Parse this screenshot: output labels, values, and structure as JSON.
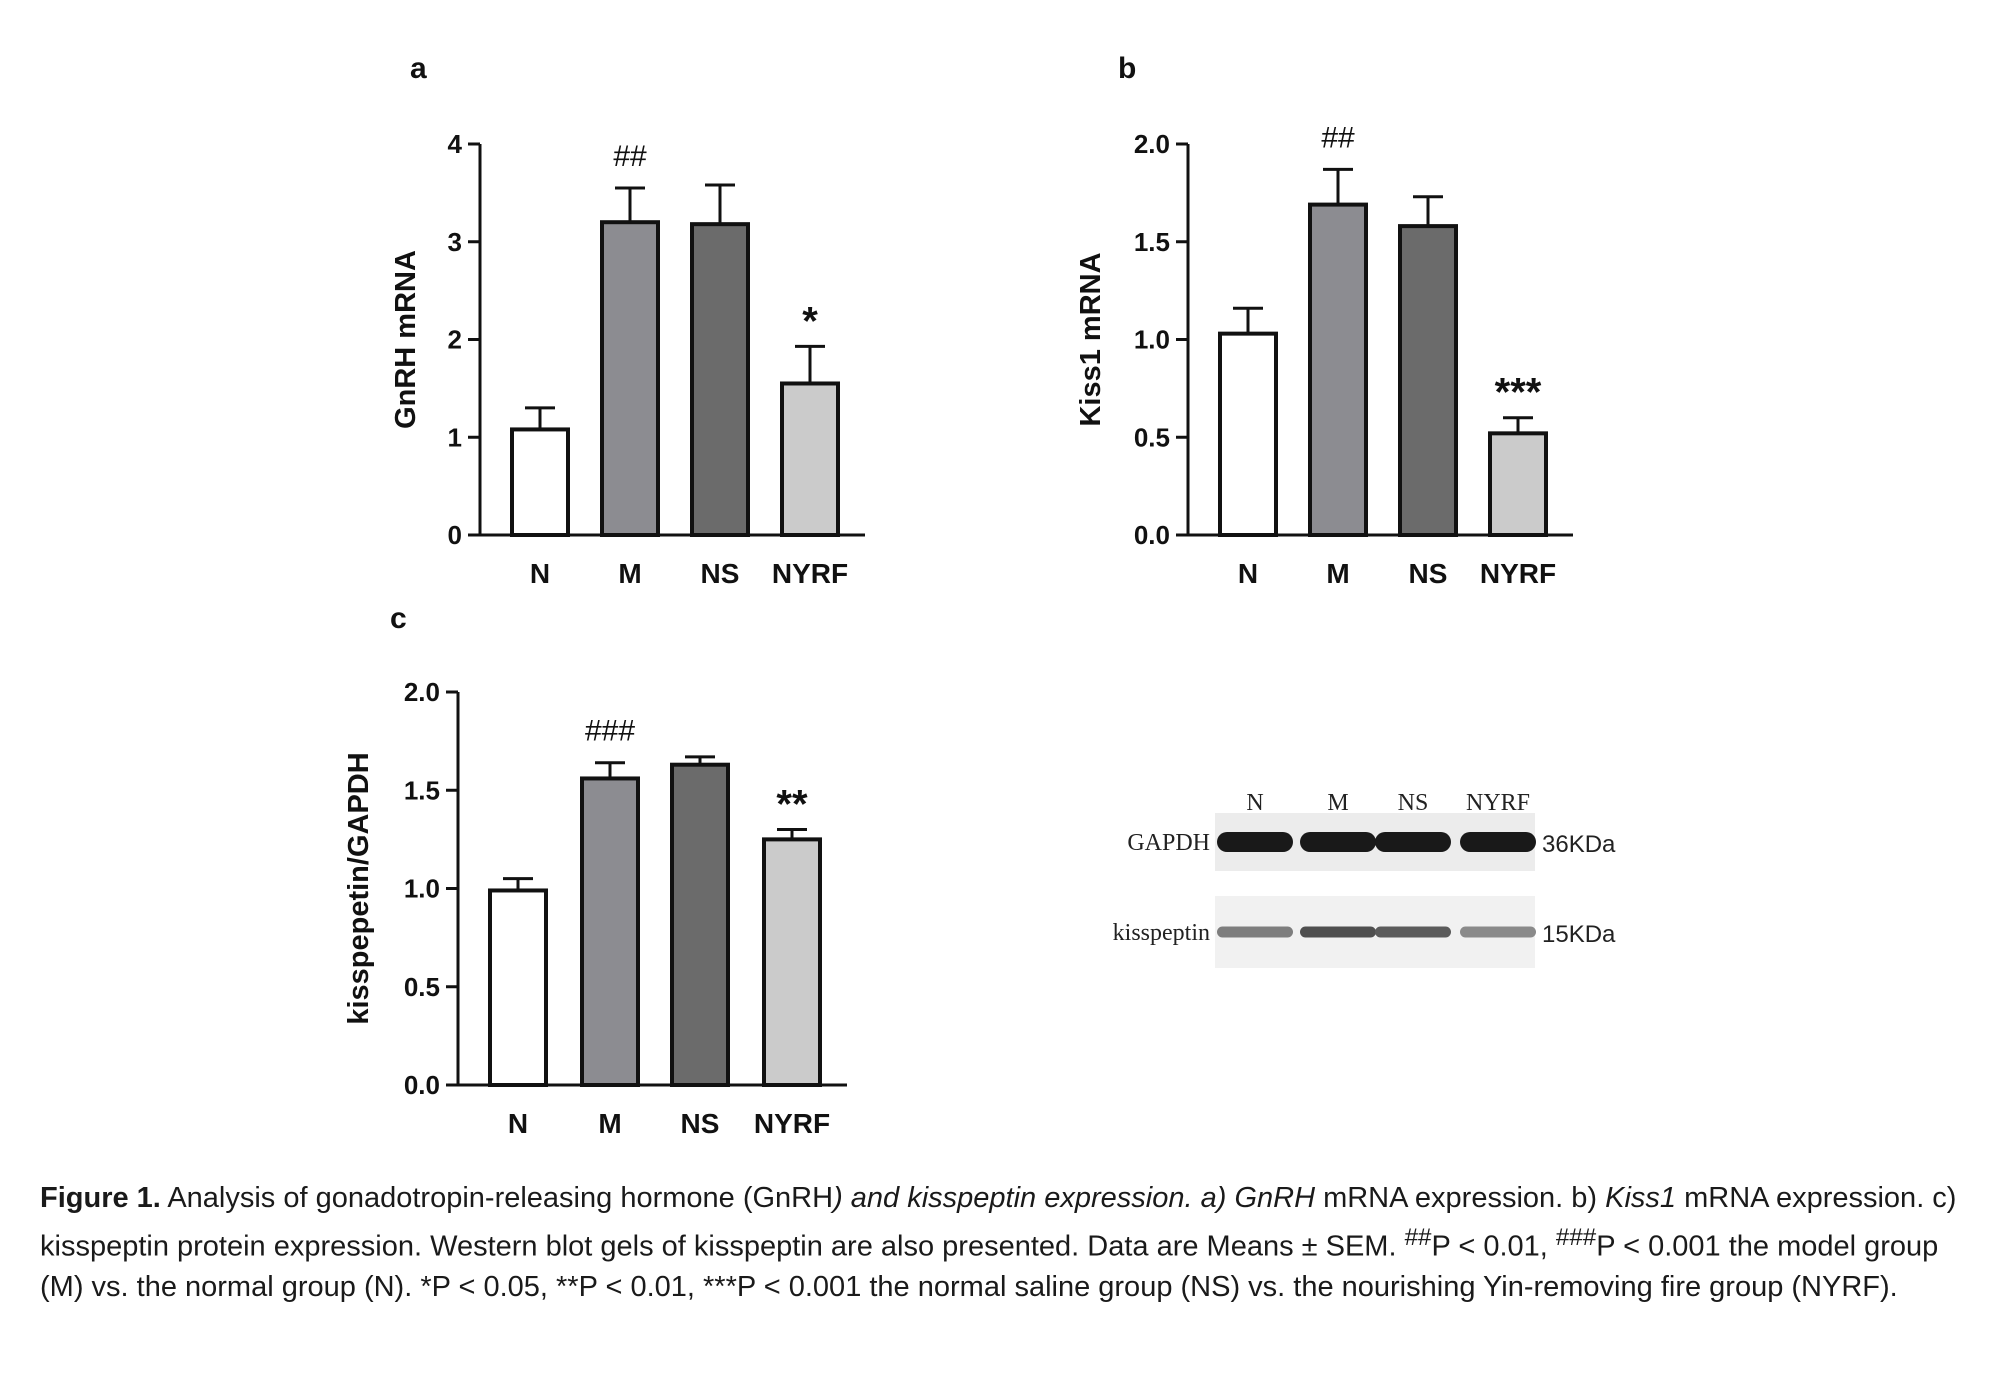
{
  "panels": [
    {
      "letter": "a",
      "ylabel": "GnRH mRNA",
      "categories": [
        "N",
        "M",
        "NS",
        "NYRF"
      ],
      "ytick_labels": [
        "0",
        "1",
        "2",
        "3",
        "4"
      ]
    },
    {
      "letter": "b",
      "ylabel": "Kiss1 mRNA",
      "categories": [
        "N",
        "M",
        "NS",
        "NYRF"
      ],
      "ytick_labels": [
        "0.0",
        "0.5",
        "1.0",
        "1.5",
        "2.0"
      ]
    },
    {
      "letter": "c",
      "ylabel": "kisspepetin/GAPDH",
      "categories": [
        "N",
        "M",
        "NS",
        "NYRF"
      ],
      "ytick_labels": [
        "0.0",
        "0.5",
        "1.0",
        "1.5",
        "2.0"
      ]
    }
  ],
  "colors": {
    "N": "#ffffff",
    "M": "#8c8c91",
    "NS": "#6b6b6b",
    "NYRF": "#cbcbcb",
    "axis": "#111111"
  },
  "chart_data": [
    {
      "type": "bar",
      "ylabel": "GnRH mRNA",
      "categories": [
        "N",
        "M",
        "NS",
        "NYRF"
      ],
      "values": [
        1.08,
        3.2,
        3.18,
        1.55
      ],
      "errors": [
        0.22,
        0.35,
        0.4,
        0.38
      ],
      "annotations": [
        "",
        "##",
        "",
        "*"
      ],
      "ylim": [
        0,
        4
      ],
      "yticks": [
        0,
        1,
        2,
        3,
        4
      ]
    },
    {
      "type": "bar",
      "ylabel": "Kiss1 mRNA",
      "categories": [
        "N",
        "M",
        "NS",
        "NYRF"
      ],
      "values": [
        1.03,
        1.69,
        1.58,
        0.52
      ],
      "errors": [
        0.13,
        0.18,
        0.15,
        0.08
      ],
      "annotations": [
        "",
        "##",
        "",
        "***"
      ],
      "ylim": [
        0,
        2.0
      ],
      "yticks": [
        0.0,
        0.5,
        1.0,
        1.5,
        2.0
      ]
    },
    {
      "type": "bar",
      "ylabel": "kisspepetin/GAPDH",
      "categories": [
        "N",
        "M",
        "NS",
        "NYRF"
      ],
      "values": [
        0.99,
        1.56,
        1.63,
        1.25
      ],
      "errors": [
        0.06,
        0.08,
        0.04,
        0.05
      ],
      "annotations": [
        "",
        "###",
        "",
        "**"
      ],
      "ylim": [
        0,
        2.0
      ],
      "yticks": [
        0.0,
        0.5,
        1.0,
        1.5,
        2.0
      ]
    }
  ],
  "blot": {
    "lanes": [
      "N",
      "M",
      "NS",
      "NYRF"
    ],
    "rows": [
      {
        "label": "GAPDH",
        "size": "36KDa",
        "intensity": [
          0.98,
          0.98,
          0.98,
          0.98
        ]
      },
      {
        "label": "kisspeptin",
        "size": "15KDa",
        "intensity": [
          0.55,
          0.75,
          0.7,
          0.5
        ]
      }
    ]
  },
  "caption": {
    "figure_label": "Figure 1.",
    "text_1": " Analysis of gonadotropin-releasing hormone (GnRH",
    "text_2": ") and kisspeptin expression. a) ",
    "gnrh_italic": "GnRH",
    "text_3": " mRNA expression. b) ",
    "kiss1_italic": "Kiss1",
    "text_4": " mRNA expression. c) kisspeptin protein expression. Western blot gels of kisspeptin are also presented. Data are Means ± SEM. ",
    "sup_1": "##",
    "text_5": "P < 0.01, ",
    "sup_2": "###",
    "text_6": "P < 0.001 the model group (M) vs. the normal group (N). *P < 0.05, **P < 0.01, ***P < 0.001 the normal saline group (NS) vs. the nourishing Yin-removing fire group (NYRF)."
  }
}
